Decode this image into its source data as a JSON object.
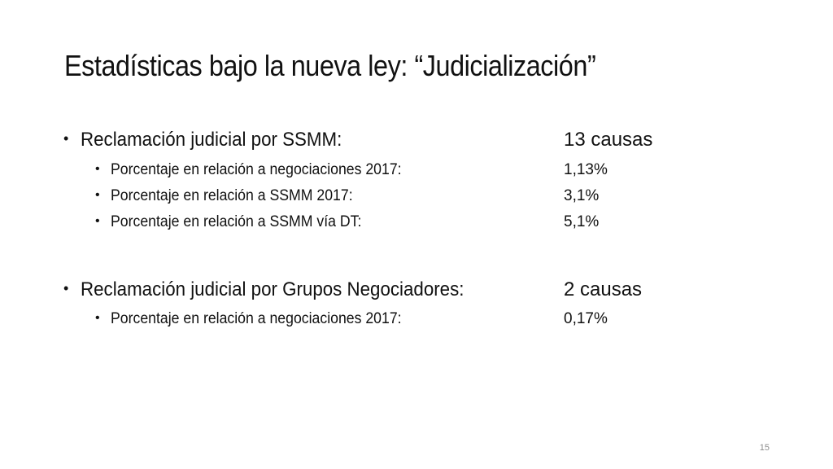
{
  "slide": {
    "title": "Estadísticas bajo la nueva ley: “Judicialización”",
    "bullet_symbol": "•",
    "items": [
      {
        "label": "Reclamación judicial por SSMM:",
        "value": "13 causas",
        "subitems": [
          {
            "label": "Porcentaje en relación a negociaciones 2017:",
            "value": "1,13%"
          },
          {
            "label": "Porcentaje en relación a SSMM 2017:",
            "value": "3,1%"
          },
          {
            "label": "Porcentaje en relación a SSMM vía DT:",
            "value": "5,1%"
          }
        ]
      },
      {
        "label": "Reclamación judicial por Grupos Negociadores:",
        "value": "2 causas",
        "subitems": [
          {
            "label": "Porcentaje en relación a negociaciones 2017:",
            "value": "0,17%"
          }
        ]
      }
    ],
    "page_number": "15"
  }
}
